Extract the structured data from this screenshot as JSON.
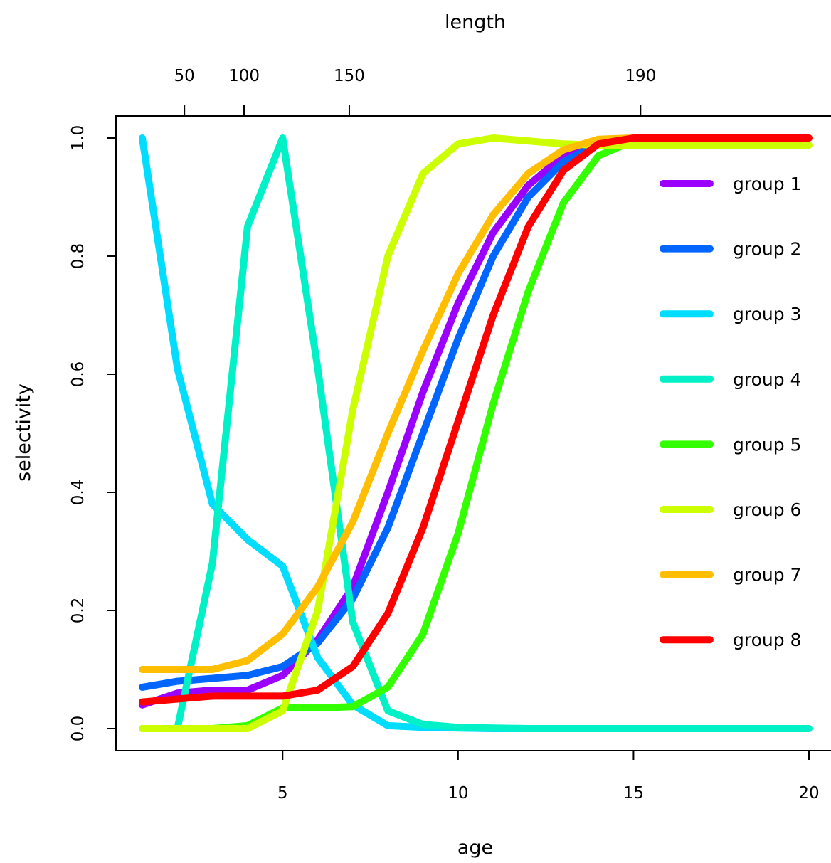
{
  "chart_data": {
    "type": "line",
    "xlabel": "age",
    "ylabel": "selectivity",
    "top_axis_label": "length",
    "xlim": [
      1,
      20
    ],
    "ylim": [
      0,
      1
    ],
    "x_ticks": [
      5,
      10,
      15,
      20
    ],
    "x_tick_labels": [
      "5",
      "10",
      "15",
      "20"
    ],
    "y_ticks": [
      0,
      0.2,
      0.4,
      0.6,
      0.8,
      1.0
    ],
    "y_tick_labels": [
      "0.0",
      "0.2",
      "0.4",
      "0.6",
      "0.8",
      "1.0"
    ],
    "top_ticks": [
      {
        "label": "50",
        "age": 2.2
      },
      {
        "label": "100",
        "age": 3.9
      },
      {
        "label": "150",
        "age": 6.9
      },
      {
        "label": "190",
        "age": 15.2
      }
    ],
    "grid": false,
    "legend_placement": "right",
    "x": [
      1,
      2,
      3,
      4,
      5,
      6,
      7,
      8,
      9,
      10,
      11,
      12,
      13,
      14,
      15,
      16,
      17,
      18,
      19,
      20
    ],
    "series": [
      {
        "name": "group 1",
        "color": "#9B00FF",
        "values": [
          0.04,
          0.06,
          0.065,
          0.065,
          0.09,
          0.15,
          0.24,
          0.4,
          0.57,
          0.72,
          0.84,
          0.92,
          0.97,
          0.99,
          1.0,
          1.0,
          1.0,
          1.0,
          1.0,
          1.0
        ]
      },
      {
        "name": "group 2",
        "color": "#0066FF",
        "values": [
          0.07,
          0.08,
          0.085,
          0.09,
          0.105,
          0.145,
          0.22,
          0.34,
          0.5,
          0.66,
          0.8,
          0.9,
          0.96,
          0.99,
          1.0,
          1.0,
          1.0,
          1.0,
          1.0,
          1.0
        ]
      },
      {
        "name": "group 3",
        "color": "#00DDFF",
        "values": [
          1.0,
          0.61,
          0.38,
          0.32,
          0.275,
          0.12,
          0.04,
          0.005,
          0.002,
          0.001,
          0.0,
          0.0,
          0.0,
          0.0,
          0.0,
          0.0,
          0.0,
          0.0,
          0.0,
          0.0
        ]
      },
      {
        "name": "group 4",
        "color": "#00F0C8",
        "values": [
          0.0,
          0.0,
          0.28,
          0.85,
          1.0,
          0.61,
          0.18,
          0.03,
          0.007,
          0.002,
          0.001,
          0.0,
          0.0,
          0.0,
          0.0,
          0.0,
          0.0,
          0.0,
          0.0,
          0.0
        ]
      },
      {
        "name": "group 5",
        "color": "#33FF00",
        "values": [
          0.0,
          0.0,
          0.0,
          0.005,
          0.035,
          0.035,
          0.037,
          0.07,
          0.16,
          0.33,
          0.55,
          0.74,
          0.89,
          0.97,
          0.995,
          1.0,
          1.0,
          1.0,
          1.0,
          1.0
        ]
      },
      {
        "name": "group 6",
        "color": "#CCFF00",
        "values": [
          0.0,
          0.0,
          0.0,
          0.0,
          0.03,
          0.2,
          0.54,
          0.8,
          0.94,
          0.99,
          1.0,
          0.995,
          0.99,
          0.988,
          0.988,
          0.988,
          0.988,
          0.988,
          0.988,
          0.988
        ]
      },
      {
        "name": "group 7",
        "color": "#FFBF00",
        "values": [
          0.1,
          0.1,
          0.1,
          0.115,
          0.16,
          0.24,
          0.35,
          0.5,
          0.64,
          0.77,
          0.87,
          0.94,
          0.98,
          0.998,
          1.0,
          1.0,
          1.0,
          1.0,
          1.0,
          1.0
        ]
      },
      {
        "name": "group 8",
        "color": "#FF0000",
        "values": [
          0.045,
          0.05,
          0.055,
          0.055,
          0.055,
          0.065,
          0.105,
          0.195,
          0.34,
          0.52,
          0.7,
          0.85,
          0.945,
          0.99,
          1.0,
          1.0,
          1.0,
          1.0,
          1.0,
          1.0
        ]
      }
    ]
  }
}
